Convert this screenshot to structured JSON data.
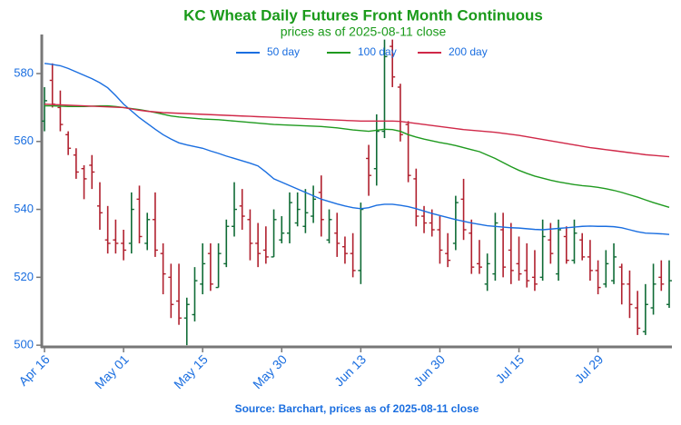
{
  "chart_data": {
    "type": "ohlc",
    "title": "KC Wheat Daily Futures Front Month Continuous",
    "subtitle": "prices as of 2025-08-11 close",
    "footer": "Source: Barchart, prices as of 2025-08-11 close",
    "categories": [
      "Apr 16",
      null,
      null,
      null,
      null,
      null,
      null,
      null,
      null,
      null,
      "May 01",
      null,
      null,
      null,
      null,
      null,
      null,
      null,
      null,
      null,
      "May 15",
      null,
      null,
      null,
      null,
      null,
      null,
      null,
      null,
      null,
      "May 30",
      null,
      null,
      null,
      null,
      null,
      null,
      null,
      null,
      null,
      "Jun 13",
      null,
      null,
      null,
      null,
      null,
      null,
      null,
      null,
      null,
      "Jun 30",
      null,
      null,
      null,
      null,
      null,
      null,
      null,
      null,
      null,
      "Jul 15",
      null,
      null,
      null,
      null,
      null,
      null,
      null,
      null,
      null,
      "Jul 29",
      null,
      null,
      null,
      null,
      null,
      null,
      null,
      null,
      null
    ],
    "ohlc": {
      "up_color": "#0f6b35",
      "down_color": "#b0202e",
      "open": [
        566,
        578,
        570,
        562,
        556,
        552,
        553,
        541,
        531,
        531,
        530,
        530,
        543,
        530,
        537,
        527,
        520,
        513,
        508,
        509,
        518,
        527,
        517,
        524,
        535,
        541,
        537,
        530,
        528,
        526,
        531,
        533,
        536,
        535,
        538,
        545,
        531,
        533,
        529,
        527,
        522,
        555,
        552,
        563,
        588,
        576,
        565,
        549,
        538,
        536,
        534,
        527,
        530,
        543,
        533,
        524,
        518,
        521,
        534,
        528,
        524,
        522,
        520,
        520,
        531,
        521,
        532,
        525,
        531,
        526,
        522,
        518,
        519,
        523,
        518,
        511,
        504,
        511,
        520,
        512
      ],
      "high": [
        576,
        583,
        575,
        563,
        558,
        553,
        556,
        548,
        541,
        537,
        534,
        545,
        547,
        539,
        545,
        530,
        524,
        524,
        514,
        523,
        530,
        530,
        530,
        537,
        548,
        546,
        540,
        536,
        535,
        540,
        538,
        545,
        545,
        546,
        547,
        550,
        540,
        539,
        532,
        533,
        542,
        559,
        568,
        590,
        590,
        577,
        566,
        552,
        541,
        540,
        538,
        533,
        544,
        549,
        537,
        531,
        527,
        539,
        539,
        536,
        532,
        530,
        528,
        537,
        536,
        537,
        535,
        537,
        533,
        531,
        525,
        528,
        530,
        524,
        522,
        516,
        518,
        524,
        525,
        525
      ],
      "low": [
        563,
        570,
        563,
        556,
        549,
        543,
        546,
        534,
        527,
        527,
        525,
        527,
        530,
        528,
        526,
        515,
        508,
        506,
        500,
        507,
        515,
        516,
        517,
        523,
        532,
        534,
        525,
        523,
        524,
        526,
        530,
        530,
        535,
        533,
        536,
        532,
        530,
        526,
        524,
        520,
        518,
        544,
        547,
        561,
        576,
        560,
        548,
        535,
        533,
        532,
        524,
        523,
        528,
        531,
        521,
        521,
        516,
        519,
        520,
        518,
        519,
        517,
        516,
        519,
        524,
        519,
        524,
        524,
        525,
        519,
        515,
        517,
        518,
        512,
        508,
        503,
        503,
        509,
        516,
        511
      ],
      "close": [
        572,
        571,
        565,
        558,
        551,
        549,
        551,
        539,
        530,
        530,
        528,
        540,
        532,
        537,
        528,
        521,
        512,
        508,
        512,
        519,
        524,
        518,
        527,
        535,
        540,
        538,
        530,
        527,
        526,
        537,
        533,
        542,
        540,
        539,
        543,
        537,
        537,
        530,
        527,
        522,
        540,
        550,
        563,
        585,
        579,
        562,
        550,
        538,
        536,
        534,
        528,
        525,
        542,
        534,
        523,
        523,
        524,
        536,
        523,
        522,
        521,
        519,
        518,
        532,
        527,
        534,
        525,
        533,
        526,
        522,
        517,
        524,
        526,
        518,
        512,
        505,
        512,
        518,
        518,
        519
      ]
    },
    "series": [
      {
        "name": "50 day",
        "color": "#1a6ee0",
        "values": [
          583,
          582.7,
          582.3,
          581.5,
          580.5,
          579.5,
          578.5,
          577.3,
          575.8,
          573.5,
          571,
          569,
          567,
          565.3,
          563.6,
          562,
          560.7,
          559.6,
          559,
          558.5,
          558,
          557.2,
          556.5,
          555.7,
          555,
          554.3,
          553.6,
          552.8,
          551,
          549,
          548,
          547,
          546,
          545,
          544,
          543,
          542.3,
          541.6,
          541,
          540.5,
          540.2,
          540.5,
          541.2,
          541.5,
          541.5,
          541.2,
          540.8,
          540.2,
          539.5,
          538.8,
          538.2,
          537.6,
          537,
          536.5,
          536,
          535.6,
          535.2,
          535,
          534.8,
          534.6,
          534.5,
          534.3,
          534.1,
          534,
          534.2,
          534.4,
          534.6,
          534.8,
          535,
          535.1,
          535,
          535,
          534.9,
          534.6,
          534,
          533.4,
          533,
          532.9,
          532.8,
          532.6
        ]
      },
      {
        "name": "100 day",
        "color": "#1f9a1f",
        "values": [
          570.5,
          570.5,
          570.4,
          570.3,
          570.3,
          570.3,
          570.4,
          570.5,
          570.5,
          570.3,
          570,
          569.7,
          569.4,
          569,
          568.5,
          568,
          567.5,
          567.2,
          567,
          566.8,
          566.6,
          566.5,
          566.4,
          566.2,
          566,
          565.8,
          565.6,
          565.4,
          565.2,
          565,
          564.9,
          564.8,
          564.7,
          564.6,
          564.5,
          564.4,
          564.2,
          564,
          563.7,
          563.4,
          563.2,
          563,
          563.3,
          563.6,
          563.5,
          563,
          562,
          561.3,
          560.7,
          560.2,
          559.7,
          559.3,
          558.8,
          558.2,
          557.6,
          557,
          556,
          555,
          553.8,
          552.6,
          551.5,
          550.6,
          549.8,
          549.2,
          548.6,
          548.1,
          547.7,
          547.3,
          547,
          546.8,
          546.5,
          546.1,
          545.6,
          545,
          544.3,
          543.6,
          542.8,
          542,
          541.3,
          540.6
        ]
      },
      {
        "name": "200 day",
        "color": "#d02848",
        "values": [
          571,
          570.9,
          570.8,
          570.7,
          570.6,
          570.5,
          570.4,
          570.3,
          570.2,
          570.1,
          570,
          569.6,
          569.2,
          568.9,
          568.7,
          568.5,
          568.4,
          568.3,
          568.2,
          568.1,
          568,
          567.9,
          567.8,
          567.7,
          567.6,
          567.5,
          567.4,
          567.3,
          567.2,
          567.1,
          567,
          566.9,
          566.8,
          566.7,
          566.6,
          566.5,
          566.4,
          566.3,
          566.2,
          566.1,
          566,
          566,
          566,
          566,
          566,
          565.9,
          565.6,
          565.3,
          565,
          564.7,
          564.4,
          564.1,
          563.8,
          563.5,
          563.3,
          563.1,
          562.9,
          562.7,
          562.4,
          562.1,
          561.8,
          561.4,
          561,
          560.6,
          560.2,
          559.8,
          559.4,
          559,
          558.6,
          558.2,
          557.9,
          557.6,
          557.3,
          557,
          556.7,
          556.4,
          556.1,
          555.9,
          555.7,
          555.5
        ]
      }
    ],
    "ylim": [
      499.5,
      591.5
    ],
    "yticks": [
      500,
      520,
      540,
      560,
      580
    ],
    "legend": "top"
  }
}
